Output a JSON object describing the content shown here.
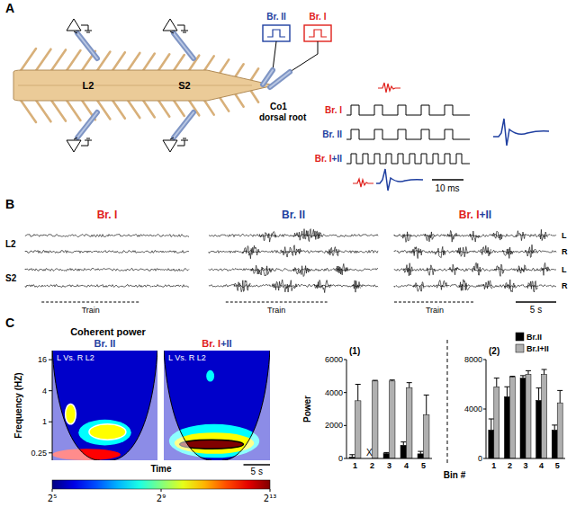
{
  "panel_labels": [
    "A",
    "B",
    "C"
  ],
  "panel_a": {
    "segment_labels": [
      "L2",
      "S2"
    ],
    "root_label": [
      "Co1",
      "dorsal root"
    ],
    "stimulators": [
      {
        "label": "Br. II",
        "color": "#1f3fa0"
      },
      {
        "label": "Br. I",
        "color": "#e0201b"
      }
    ],
    "trains": [
      {
        "parts": [
          {
            "text": "Br. I",
            "color": "#e0201b"
          }
        ]
      },
      {
        "parts": [
          {
            "text": "Br. II",
            "color": "#1f3fa0"
          }
        ]
      },
      {
        "parts": [
          {
            "text": "Br. I",
            "color": "#e0201b"
          },
          {
            "text": "+II",
            "color": "#1f3fa0"
          }
        ]
      }
    ],
    "scale_bar": "10 ms"
  },
  "panel_b": {
    "xlim": [
      0,
      20
    ],
    "rows": [
      "L2",
      "S2"
    ],
    "sides": [
      "L",
      "R",
      "L",
      "R"
    ],
    "train_label": "Train",
    "scale_bar": "5 s",
    "scale_bar_seconds": 5,
    "groups": [
      {
        "title": [
          {
            "text": "Br. I",
            "color": "#e0201b"
          }
        ],
        "train": [
          2,
          14
        ],
        "bursts": [
          [],
          [],
          [],
          []
        ]
      },
      {
        "title": [
          {
            "text": "Br. II",
            "color": "#1f3fa0"
          }
        ],
        "train": [
          2,
          14
        ],
        "bursts": [
          [
            [
              6,
              8
            ],
            [
              10,
              13.5
            ]
          ],
          [
            [
              4,
              6
            ],
            [
              8.5,
              11
            ],
            [
              14,
              15.5
            ]
          ],
          [
            [
              5,
              7.5
            ],
            [
              10,
              12
            ],
            [
              15,
              16.5
            ]
          ],
          [
            [
              3,
              5
            ],
            [
              7.5,
              10.5
            ],
            [
              12.5,
              14.5
            ],
            [
              17,
              18
            ]
          ]
        ]
      },
      {
        "title": [
          {
            "text": "Br. I",
            "color": "#e0201b"
          },
          {
            "text": "+II",
            "color": "#1f3fa0"
          }
        ],
        "train": [
          0,
          10
        ],
        "bursts": [
          [
            [
              1,
              2.2
            ],
            [
              3.8,
              5
            ],
            [
              6.6,
              7.8
            ],
            [
              9.4,
              10.6
            ],
            [
              12.2,
              13.4
            ],
            [
              15,
              16.2
            ],
            [
              17.8,
              19
            ]
          ],
          [
            [
              2.2,
              3.5
            ],
            [
              5,
              6.4
            ],
            [
              7.8,
              9.2
            ],
            [
              10.6,
              12
            ],
            [
              13.4,
              14.8
            ],
            [
              16.2,
              17.6
            ]
          ],
          [
            [
              1.2,
              2.4
            ],
            [
              4,
              5.2
            ],
            [
              6.8,
              8
            ],
            [
              9.6,
              10.8
            ],
            [
              12.4,
              13.6
            ],
            [
              15.2,
              16.4
            ],
            [
              18,
              19.2
            ]
          ],
          [
            [
              2.4,
              3.7
            ],
            [
              5.2,
              6.6
            ],
            [
              8,
              9.4
            ],
            [
              10.8,
              12.2
            ],
            [
              13.6,
              15
            ],
            [
              16.4,
              17.8
            ]
          ]
        ]
      }
    ]
  },
  "panel_c": {
    "title": "Coherent power",
    "ylabel": "Frequency (HZ)",
    "xlabel": "Time",
    "log": "y",
    "xlim": [
      0,
      20
    ],
    "ylim": [
      0.18,
      24
    ],
    "yticks": [
      0.25,
      1,
      4,
      16
    ],
    "scale_bar": "5 s",
    "scale_bar_seconds": 5,
    "colorbar": {
      "range": [
        32,
        8192
      ],
      "ticks": [
        {
          "value": 32,
          "label": "2⁵"
        },
        {
          "value": 512,
          "label": "2⁹"
        },
        {
          "value": 8192,
          "label": "2¹³"
        }
      ]
    },
    "wavelets": [
      {
        "title": [
          {
            "text": "Br. II",
            "color": "#1f3fa0"
          }
        ],
        "pair": "L Vs. R L2",
        "background": 48,
        "regions": [
          {
            "time": [
              0,
              13
            ],
            "freq": [
              0.18,
              0.3
            ],
            "power": 4096,
            "contour": false
          },
          {
            "time": [
              5,
              15
            ],
            "freq": [
              0.35,
              1.1
            ],
            "power": 256,
            "contour": false
          },
          {
            "time": [
              7,
              14
            ],
            "freq": [
              0.45,
              0.9
            ],
            "power": 1024,
            "contour": true
          },
          {
            "time": [
              2.5,
              4.5
            ],
            "freq": [
              0.9,
              2.2
            ],
            "power": 1024,
            "contour": true
          }
        ]
      },
      {
        "title": [
          {
            "text": "Br. I",
            "color": "#e0201b"
          },
          {
            "text": "+II",
            "color": "#1f3fa0"
          }
        ],
        "pair": "L Vs. R L2",
        "background": 48,
        "regions": [
          {
            "time": [
              1,
              18
            ],
            "freq": [
              0.2,
              0.9
            ],
            "power": 256,
            "contour": false
          },
          {
            "time": [
              2,
              17
            ],
            "freq": [
              0.24,
              0.62
            ],
            "power": 1024,
            "contour": false
          },
          {
            "time": [
              3,
              15
            ],
            "freq": [
              0.3,
              0.45
            ],
            "power": 8192,
            "contour": true
          },
          {
            "time": [
              8,
              9.5
            ],
            "freq": [
              6,
              10
            ],
            "power": 256,
            "contour": false
          }
        ]
      }
    ]
  },
  "chart_data": [
    {
      "type": "bar",
      "title": "(1)",
      "xlabel": "Bin #",
      "ylabel": "Power",
      "categories": [
        "1",
        "2",
        "3",
        "4",
        "5"
      ],
      "ylim": [
        0,
        6000
      ],
      "yticks": [
        0,
        2000,
        4000,
        6000
      ],
      "series": [
        {
          "name": "Br.II",
          "color": "#000000",
          "values": [
            80,
            null,
            300,
            800,
            280
          ],
          "errors": [
            150,
            null,
            60,
            200,
            150
          ]
        },
        {
          "name": "Br.I+II",
          "color": "#b0b0b0",
          "values": [
            3500,
            4700,
            4700,
            4300,
            2650
          ],
          "errors": [
            1000,
            40,
            60,
            300,
            1200
          ]
        }
      ],
      "annotations": [
        {
          "text": "X",
          "x": "2"
        }
      ]
    },
    {
      "type": "bar",
      "title": "(2)",
      "categories": [
        "1",
        "2",
        "3",
        "4",
        "5"
      ],
      "ylim": [
        0,
        8000
      ],
      "yticks": [
        0,
        4000,
        8000
      ],
      "legend": "upper right",
      "series": [
        {
          "name": "Br.II",
          "color": "#000000",
          "values": [
            2300,
            5000,
            6500,
            4700,
            2300
          ],
          "errors": [
            900,
            800,
            200,
            1000,
            400
          ]
        },
        {
          "name": "Br.I+II",
          "color": "#b0b0b0",
          "values": [
            5800,
            6600,
            6800,
            6800,
            4500
          ],
          "errors": [
            700,
            50,
            300,
            400,
            1000
          ]
        }
      ]
    }
  ]
}
